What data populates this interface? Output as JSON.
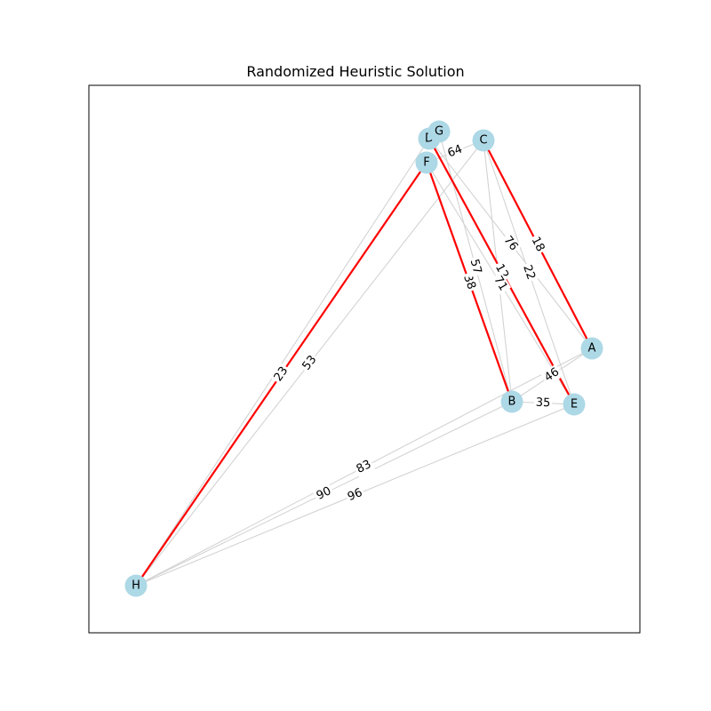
{
  "title": "Randomized Heuristic Solution",
  "colors": {
    "node_fill": "#add8e6",
    "edge_default": "#d3d3d3",
    "edge_highlight": "#ff0000",
    "frame": "#000000"
  },
  "nodes": [
    {
      "id": "A",
      "label": "A"
    },
    {
      "id": "B",
      "label": "B"
    },
    {
      "id": "C",
      "label": "C"
    },
    {
      "id": "D",
      "label": "D"
    },
    {
      "id": "E",
      "label": "E"
    },
    {
      "id": "F",
      "label": "F"
    },
    {
      "id": "G",
      "label": "G"
    },
    {
      "id": "H",
      "label": "H"
    }
  ],
  "edges": [
    {
      "from": "A",
      "to": "B",
      "weight": "46",
      "highlight": false
    },
    {
      "from": "A",
      "to": "H",
      "weight": "83",
      "highlight": false
    },
    {
      "from": "A",
      "to": "C",
      "weight": "18",
      "highlight": true
    },
    {
      "from": "A",
      "to": "D",
      "weight": "76",
      "highlight": false
    },
    {
      "from": "B",
      "to": "E",
      "weight": "35",
      "highlight": false
    },
    {
      "from": "B",
      "to": "H",
      "weight": "90",
      "highlight": false
    },
    {
      "from": "B",
      "to": "F",
      "weight": "38",
      "highlight": true
    },
    {
      "from": "B",
      "to": "G",
      "weight": "57",
      "highlight": false
    },
    {
      "from": "B",
      "to": "C",
      "weight": "",
      "highlight": false
    },
    {
      "from": "E",
      "to": "H",
      "weight": "96",
      "highlight": false
    },
    {
      "from": "E",
      "to": "D",
      "weight": "12",
      "highlight": true
    },
    {
      "from": "E",
      "to": "F",
      "weight": "71",
      "highlight": false
    },
    {
      "from": "E",
      "to": "C",
      "weight": "22",
      "highlight": false
    },
    {
      "from": "H",
      "to": "F",
      "weight": "23",
      "highlight": true
    },
    {
      "from": "H",
      "to": "C",
      "weight": "53",
      "highlight": false
    },
    {
      "from": "H",
      "to": "D",
      "weight": "",
      "highlight": false
    },
    {
      "from": "C",
      "to": "F",
      "weight": "64",
      "highlight": false
    }
  ]
}
